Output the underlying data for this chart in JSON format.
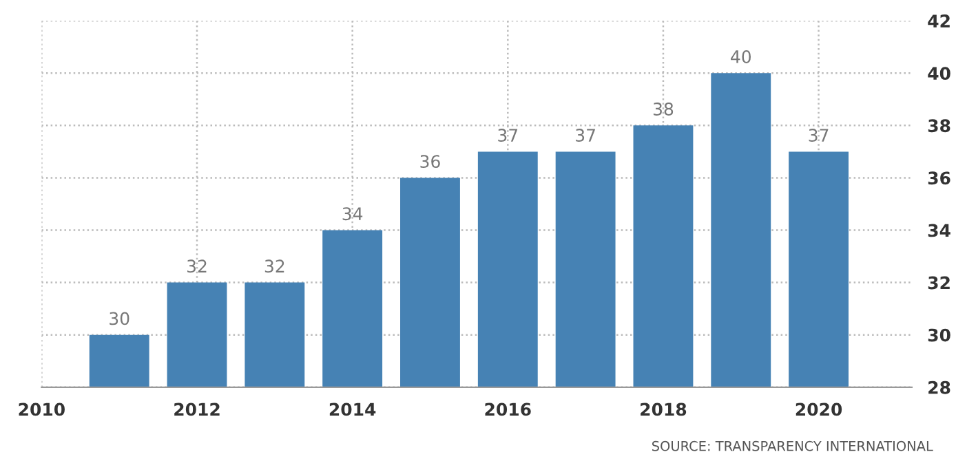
{
  "chart_data": {
    "type": "bar",
    "x": [
      2011,
      2012,
      2013,
      2014,
      2015,
      2016,
      2017,
      2018,
      2019,
      2020
    ],
    "values": [
      30,
      32,
      32,
      34,
      36,
      37,
      37,
      38,
      40,
      37
    ],
    "color": "#4682b4",
    "xlim": [
      2010,
      2021.2
    ],
    "xticks": [
      2010,
      2012,
      2014,
      2016,
      2018,
      2020
    ],
    "ylim": [
      28,
      42
    ],
    "yticks": [
      28,
      30,
      32,
      34,
      36,
      38,
      40,
      42
    ],
    "grid": true,
    "data_labels": true,
    "annotations": [
      "SOURCE: TRANSPARENCY INTERNATIONAL"
    ]
  }
}
